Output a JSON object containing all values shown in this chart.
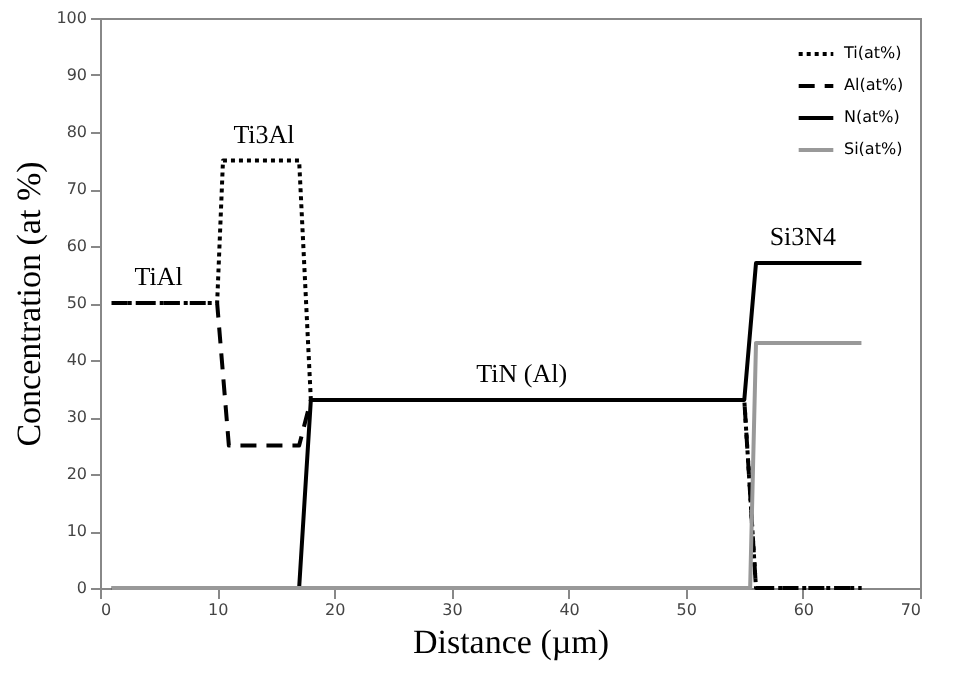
{
  "chart_data": {
    "type": "line",
    "xlabel": "Distance (µm)",
    "ylabel": "Concentration (at %)",
    "xlim": [
      0,
      70
    ],
    "xticks": [
      0,
      10,
      20,
      30,
      40,
      50,
      60,
      70
    ],
    "ylim": [
      0,
      100
    ],
    "yticks": [
      0,
      10,
      20,
      30,
      40,
      50,
      60,
      70,
      80,
      90,
      100
    ],
    "grid": false,
    "legend": "top right",
    "marker": "none",
    "series": [
      {
        "name": "Ti(at%)",
        "color": "#000000",
        "line_style": "dotted",
        "x": [
          1,
          10,
          10.5,
          17,
          18,
          55,
          56,
          65
        ],
        "values": [
          50,
          50,
          75,
          75,
          33,
          33,
          0,
          0
        ]
      },
      {
        "name": "Al(at%)",
        "color": "#000000",
        "line_style": "dashed",
        "x": [
          1,
          10,
          11,
          17,
          18,
          55,
          56,
          65
        ],
        "values": [
          50,
          50,
          25,
          25,
          33,
          33,
          0,
          0
        ]
      },
      {
        "name": "N(at%)",
        "color": "#000000",
        "line_style": "solid",
        "x": [
          1,
          17,
          18,
          55,
          56,
          65
        ],
        "values": [
          0,
          0,
          33,
          33,
          57,
          57
        ]
      },
      {
        "name": "Si(at%)",
        "color": "#999999",
        "line_style": "solid",
        "x": [
          1,
          55.5,
          56,
          65
        ],
        "values": [
          0,
          0,
          43,
          43
        ]
      }
    ],
    "annotations": [
      {
        "text": "TiAl",
        "x": 5,
        "y": 50
      },
      {
        "text": "Ti3Al",
        "x": 14,
        "y": 75
      },
      {
        "text": "TiN (Al)",
        "x": 36,
        "y": 33
      },
      {
        "text": "Si3N4",
        "x": 60,
        "y": 57
      }
    ]
  }
}
